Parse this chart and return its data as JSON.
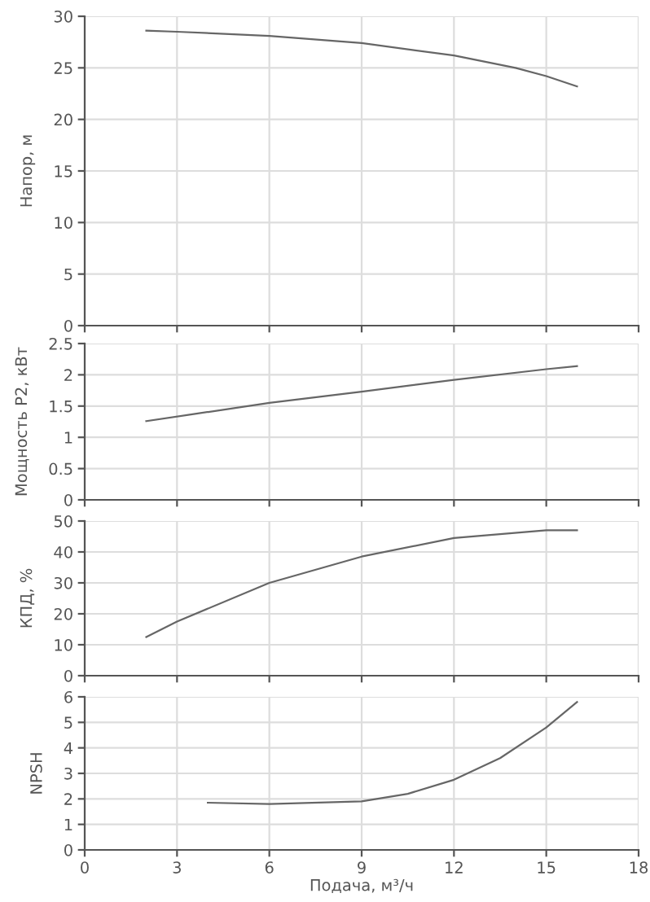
{
  "chart_data": [
    {
      "type": "line",
      "ylabel": "Напор, м",
      "xlim": [
        0,
        18
      ],
      "xticks": [
        0,
        3,
        6,
        9,
        12,
        15,
        18
      ],
      "ylim": [
        0,
        30
      ],
      "yticks": [
        0,
        5,
        10,
        15,
        20,
        25,
        30
      ],
      "grid": true,
      "tick_labels": "y",
      "series": [
        {
          "color": "#666666",
          "x": [
            2,
            3,
            6,
            9,
            12,
            14,
            15,
            16
          ],
          "values": [
            28.6,
            28.5,
            28.1,
            27.4,
            26.2,
            25.0,
            24.2,
            23.2
          ]
        }
      ]
    },
    {
      "type": "line",
      "ylabel": "Мощность P2, кВт",
      "xlim": [
        0,
        18
      ],
      "xticks": [
        0,
        3,
        6,
        9,
        12,
        15,
        18
      ],
      "ylim": [
        0,
        2.5
      ],
      "yticks": [
        0,
        0.5,
        1,
        1.5,
        2,
        2.5
      ],
      "grid": true,
      "tick_labels": "y",
      "series": [
        {
          "color": "#666666",
          "x": [
            2,
            6,
            9,
            12,
            15,
            16
          ],
          "values": [
            1.26,
            1.55,
            1.73,
            1.92,
            2.09,
            2.14
          ]
        }
      ]
    },
    {
      "type": "line",
      "ylabel": "КПД, %",
      "xlim": [
        0,
        18
      ],
      "xticks": [
        0,
        3,
        6,
        9,
        12,
        15,
        18
      ],
      "ylim": [
        0,
        50
      ],
      "yticks": [
        0,
        10,
        20,
        30,
        40,
        50
      ],
      "grid": true,
      "tick_labels": "y",
      "series": [
        {
          "color": "#666666",
          "x": [
            2,
            3,
            6,
            9,
            12,
            15,
            16
          ],
          "values": [
            12.5,
            17.5,
            30,
            38.5,
            44.5,
            47,
            47
          ]
        }
      ]
    },
    {
      "type": "line",
      "ylabel": "NPSH",
      "xlabel": "Подача, м³/ч",
      "xlim": [
        0,
        18
      ],
      "xticks": [
        0,
        3,
        6,
        9,
        12,
        15,
        18
      ],
      "ylim": [
        0,
        6
      ],
      "yticks": [
        0,
        1,
        2,
        3,
        4,
        5,
        6
      ],
      "grid": true,
      "series": [
        {
          "color": "#666666",
          "x": [
            4,
            6,
            9,
            10.5,
            12,
            13.5,
            15,
            16
          ],
          "values": [
            1.85,
            1.8,
            1.9,
            2.2,
            2.75,
            3.6,
            4.8,
            5.8
          ]
        }
      ]
    }
  ]
}
